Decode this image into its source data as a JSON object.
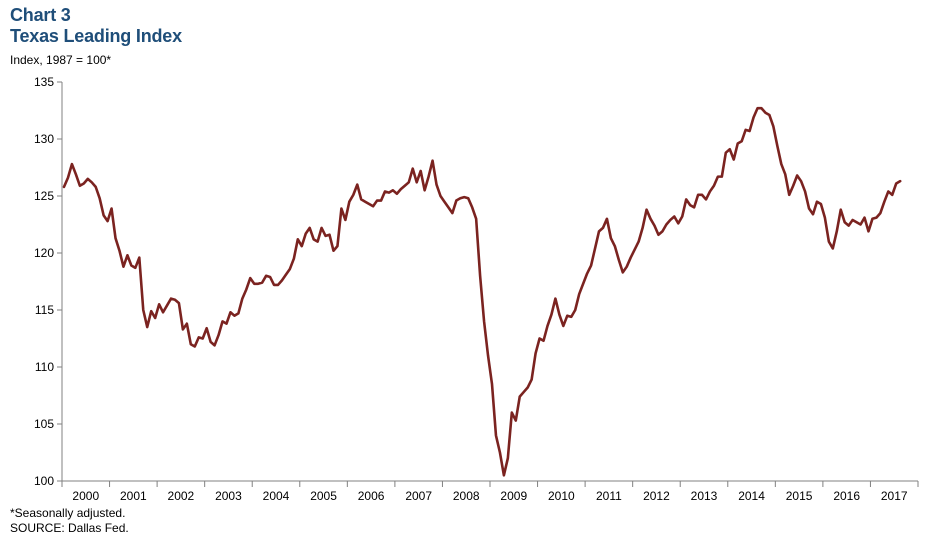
{
  "chart_label": "Chart 3",
  "chart_title": "Texas Leading Index",
  "y_units": "Index, 1987 = 100*",
  "footnote": "*Seasonally adjusted.",
  "source": "SOURCE: Dallas Fed.",
  "colors": {
    "line": "#7b2320",
    "axis": "#808080",
    "title": "#1f4e79"
  },
  "chart_data": {
    "type": "line",
    "title": "Texas Leading Index",
    "ylabel": "Index, 1987 = 100*",
    "xlabel": "",
    "ylim": [
      100,
      135
    ],
    "yticks": [
      100,
      105,
      110,
      115,
      120,
      125,
      130,
      135
    ],
    "x_tick_labels": [
      "2000",
      "2001",
      "2002",
      "2003",
      "2004",
      "2005",
      "2006",
      "2007",
      "2008",
      "2009",
      "2010",
      "2011",
      "2012",
      "2013",
      "2014",
      "2015",
      "2016",
      "2017"
    ],
    "grid": false,
    "legend": "none",
    "series": [
      {
        "x_start": "2000-01",
        "frequency": "monthly",
        "values": [
          125.8,
          126.6,
          127.8,
          126.9,
          125.9,
          126.1,
          126.5,
          126.2,
          125.8,
          124.8,
          123.3,
          122.8,
          123.9,
          121.3,
          120.2,
          118.8,
          119.8,
          118.9,
          118.7,
          119.6,
          115.0,
          113.5,
          114.9,
          114.3,
          115.5,
          114.8,
          115.4,
          116.0,
          115.9,
          115.6,
          113.3,
          113.8,
          112.0,
          111.8,
          112.6,
          112.5,
          113.4,
          112.2,
          111.9,
          112.8,
          114.0,
          113.8,
          114.8,
          114.5,
          114.7,
          116.0,
          116.8,
          117.8,
          117.3,
          117.3,
          117.4,
          118.0,
          117.9,
          117.2,
          117.2,
          117.6,
          118.1,
          118.6,
          119.5,
          121.2,
          120.6,
          121.7,
          122.2,
          121.2,
          121.0,
          122.2,
          121.5,
          121.6,
          120.2,
          120.6,
          123.9,
          122.9,
          124.5,
          125.1,
          126.0,
          124.7,
          124.5,
          124.3,
          124.1,
          124.6,
          124.6,
          125.4,
          125.3,
          125.5,
          125.2,
          125.6,
          125.9,
          126.2,
          127.4,
          126.2,
          127.2,
          125.5,
          126.7,
          128.1,
          126.0,
          125.0,
          124.5,
          124.0,
          123.5,
          124.6,
          124.8,
          124.9,
          124.8,
          124.0,
          123.0,
          118.0,
          114.0,
          111.0,
          108.5,
          104.0,
          102.5,
          100.5,
          102.0,
          106.0,
          105.3,
          107.4,
          107.8,
          108.2,
          108.9,
          111.2,
          112.5,
          112.3,
          113.6,
          114.6,
          116.0,
          114.6,
          113.6,
          114.5,
          114.4,
          115.0,
          116.4,
          117.3,
          118.2,
          118.9,
          120.4,
          121.9,
          122.2,
          123.0,
          121.3,
          120.6,
          119.4,
          118.3,
          118.8,
          119.6,
          120.3,
          121.0,
          122.2,
          123.8,
          123.0,
          122.4,
          121.6,
          121.9,
          122.5,
          122.9,
          123.2,
          122.6,
          123.2,
          124.7,
          124.2,
          124.0,
          125.1,
          125.1,
          124.7,
          125.4,
          125.9,
          126.7,
          126.7,
          128.8,
          129.1,
          128.2,
          129.6,
          129.8,
          130.8,
          130.7,
          131.9,
          132.7,
          132.7,
          132.3,
          132.1,
          131.1,
          129.4,
          127.8,
          126.9,
          125.1,
          125.9,
          126.8,
          126.3,
          125.4,
          123.9,
          123.4,
          124.5,
          124.3,
          123.1,
          121.0,
          120.4,
          121.9,
          123.8,
          122.7,
          122.4,
          122.9,
          122.7,
          122.5,
          123.1,
          121.9,
          123.0,
          123.1,
          123.5,
          124.5,
          125.4,
          125.1,
          126.1,
          126.3
        ]
      }
    ]
  }
}
